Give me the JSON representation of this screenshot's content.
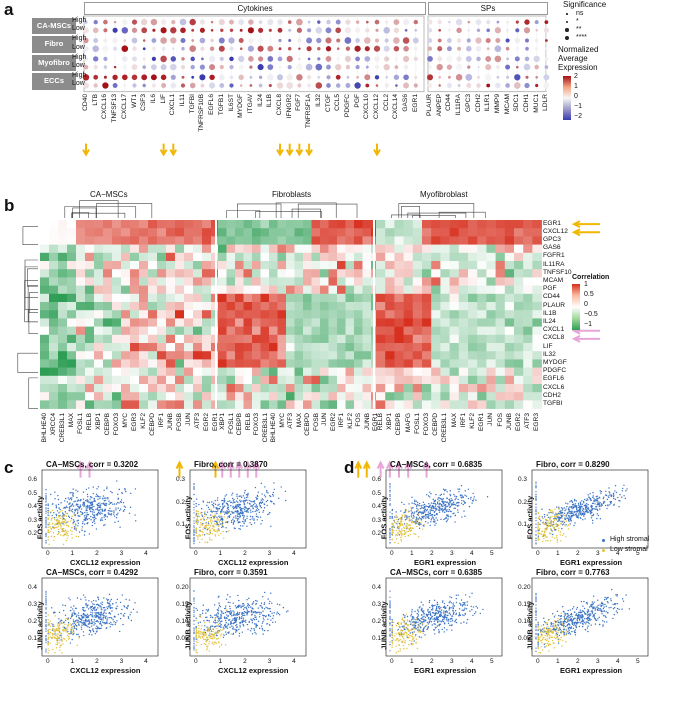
{
  "panels": {
    "a": "a",
    "b": "b",
    "c": "c",
    "d": "d"
  },
  "panel_a": {
    "headers": {
      "cytokines": "Cytokines",
      "sps": "SPs"
    },
    "row_groups": [
      {
        "name": "CA-MSCs",
        "rows": [
          "High",
          "Low"
        ]
      },
      {
        "name": "Fibro",
        "rows": [
          "High",
          "Low"
        ]
      },
      {
        "name": "Myofibro",
        "rows": [
          "High",
          "Low"
        ]
      },
      {
        "name": "ECCs",
        "rows": [
          "High",
          "Low"
        ]
      }
    ],
    "cytokine_genes": [
      "CD40",
      "LTB",
      "CXCL16",
      "TNFSF13",
      "CXCL17",
      "WT1",
      "CSF3",
      "IL6",
      "LIF",
      "CXCL1",
      "IL11",
      "TGFBI",
      "TNFRSF10B",
      "EGFL6",
      "TGFB1",
      "IL6ST",
      "MYDGF",
      "ITGAV",
      "IL24",
      "IL1B",
      "CXCL8",
      "IFNGR2",
      "FGF7",
      "TNFRSF1A",
      "IL32",
      "CTGF",
      "CCL5",
      "PDGFC",
      "PGF",
      "CXCL10",
      "CXCL12",
      "CCL2",
      "CXCL14",
      "GAS6",
      "EGR1"
    ],
    "sp_genes": [
      "PLAUR",
      "ANPEP",
      "CD44",
      "IL11RA",
      "GPC3",
      "CDH2",
      "IL1R1",
      "MMP9",
      "MCAM",
      "SDC1",
      "CDH1",
      "MUC1",
      "LDLR"
    ],
    "legend": {
      "significance_title": "Significance",
      "significance_levels": [
        "ns",
        "*",
        "**",
        "****"
      ],
      "expr_title": "Normalized Average Expression",
      "expr_ticks": [
        "2",
        "1",
        "0",
        "−1",
        "−2"
      ],
      "colors": {
        "high": "#a50f15",
        "mid": "#f7f7f7",
        "low": "#3b3bb0"
      }
    }
  },
  "panel_b": {
    "groups": [
      "CA−MSCs",
      "Fibroblasts",
      "Myofibroblast"
    ],
    "row_genes": [
      "EGR1",
      "CXCL12",
      "GPC3",
      "GAS6",
      "FGFR1",
      "IL11RA",
      "TNFSF10",
      "MCAM",
      "PGF",
      "CD44",
      "PLAUR",
      "IL1B",
      "IL24",
      "CXCL1",
      "CXCL8",
      "LIF",
      "IL32",
      "MYDGF",
      "PDGFC",
      "EGFL6",
      "CXCL6",
      "CDH2",
      "TGFBI"
    ],
    "col_tfs_1": [
      "BHLHE40",
      "XRCC4",
      "CREB3L1",
      "MAX",
      "FOSL1",
      "RELB",
      "XBP1",
      "CEBPB",
      "FOXO3",
      "MYC",
      "EGR3",
      "KLF2",
      "CEBPD",
      "IRF1",
      "JUNB",
      "FOSB",
      "JUN",
      "ATF3",
      "EGR2",
      "EGR1"
    ],
    "col_tfs_2": [
      "XBP1",
      "FOSL1",
      "CEBPB",
      "RELB",
      "FOXO3",
      "CREB3L1",
      "BHLHE40",
      "MYC",
      "ATF3",
      "MAX",
      "CEBPD",
      "FOSB",
      "JUN",
      "EGR2",
      "IRF1",
      "KLF2",
      "FOS",
      "JUNB",
      "EGR1"
    ],
    "col_tfs_3": [
      "RELB",
      "XBP1",
      "CEBPB",
      "MAFG",
      "FOSL1",
      "FOXO3",
      "CEBPD",
      "CREB3L1",
      "MAX",
      "IRF1",
      "KLF2",
      "EGR1",
      "JUN",
      "FOS",
      "JUNB",
      "EGR2",
      "ATF3",
      "EGR3"
    ],
    "legend": {
      "title": "Correlation",
      "ticks": [
        "1",
        "0.5",
        "0",
        "−0.5",
        "−1"
      ],
      "colors": {
        "pos": "#d7301f",
        "zero": "#ffffff",
        "neg": "#2e9e55"
      }
    }
  },
  "scatter_legend": {
    "high": "High stromal",
    "low": "Low stromal",
    "high_color": "#3b73c4",
    "low_color": "#e3c33c"
  },
  "scatter_panels": [
    {
      "title": "CA−MSCs, corr = 0.3202",
      "xlabel": "CXCL12 expression",
      "ylabel": "FOS activity",
      "xticks": [
        "0",
        "1",
        "2",
        "3",
        "4"
      ],
      "yticks": [
        "0.6",
        "0.5",
        "0.4",
        "0.3",
        "0.2"
      ],
      "corr": 0.3202
    },
    {
      "title": "Fibro, corr = 0.3870",
      "xlabel": "CXCL12 expression",
      "ylabel": "FOS activity",
      "xticks": [
        "0",
        "1",
        "2",
        "3",
        "4"
      ],
      "yticks": [
        "0.3",
        "0.2",
        "0.1"
      ],
      "corr": 0.387
    },
    {
      "title": "CA−MSCs, corr = 0.4292",
      "xlabel": "CXCL12 expression",
      "ylabel": "JUNB activity",
      "xticks": [
        "0",
        "1",
        "2",
        "3",
        "4"
      ],
      "yticks": [
        "0.4",
        "0.3",
        "0.2",
        "0.1"
      ],
      "corr": 0.4292
    },
    {
      "title": "Fibro, corr = 0.3591",
      "xlabel": "CXCL12 expression",
      "ylabel": "JUNB activity",
      "xticks": [
        "0",
        "1",
        "2",
        "3",
        "4"
      ],
      "yticks": [
        "0.20",
        "0.15",
        "0.10",
        "0.05"
      ],
      "corr": 0.3591
    },
    {
      "title": "CA−MSCs, corr = 0.6835",
      "xlabel": "EGR1 expression",
      "ylabel": "FOS activity",
      "xticks": [
        "0",
        "1",
        "2",
        "3",
        "4",
        "5"
      ],
      "yticks": [
        "0.6",
        "0.5",
        "0.4",
        "0.3",
        "0.2"
      ],
      "corr": 0.6835
    },
    {
      "title": "Fibro, corr = 0.8290",
      "xlabel": "EGR1 expression",
      "ylabel": "FOS activity",
      "xticks": [
        "0",
        "1",
        "2",
        "3",
        "4",
        "5"
      ],
      "yticks": [
        "0.3",
        "0.2",
        "0.1"
      ],
      "corr": 0.829
    },
    {
      "title": "CA−MSCs, corr = 0.6385",
      "xlabel": "EGR1 expression",
      "ylabel": "JUNB activity",
      "xticks": [
        "0",
        "1",
        "2",
        "3",
        "4",
        "5"
      ],
      "yticks": [
        "0.4",
        "0.3",
        "0.2",
        "0.1"
      ],
      "corr": 0.6385
    },
    {
      "title": "Fibro, corr = 0.7763",
      "xlabel": "EGR1 expression",
      "ylabel": "JUNB activity",
      "xticks": [
        "0",
        "1",
        "2",
        "3",
        "4",
        "5"
      ],
      "yticks": [
        "0.20",
        "0.15",
        "0.10",
        "0.05"
      ],
      "corr": 0.7763
    }
  ]
}
